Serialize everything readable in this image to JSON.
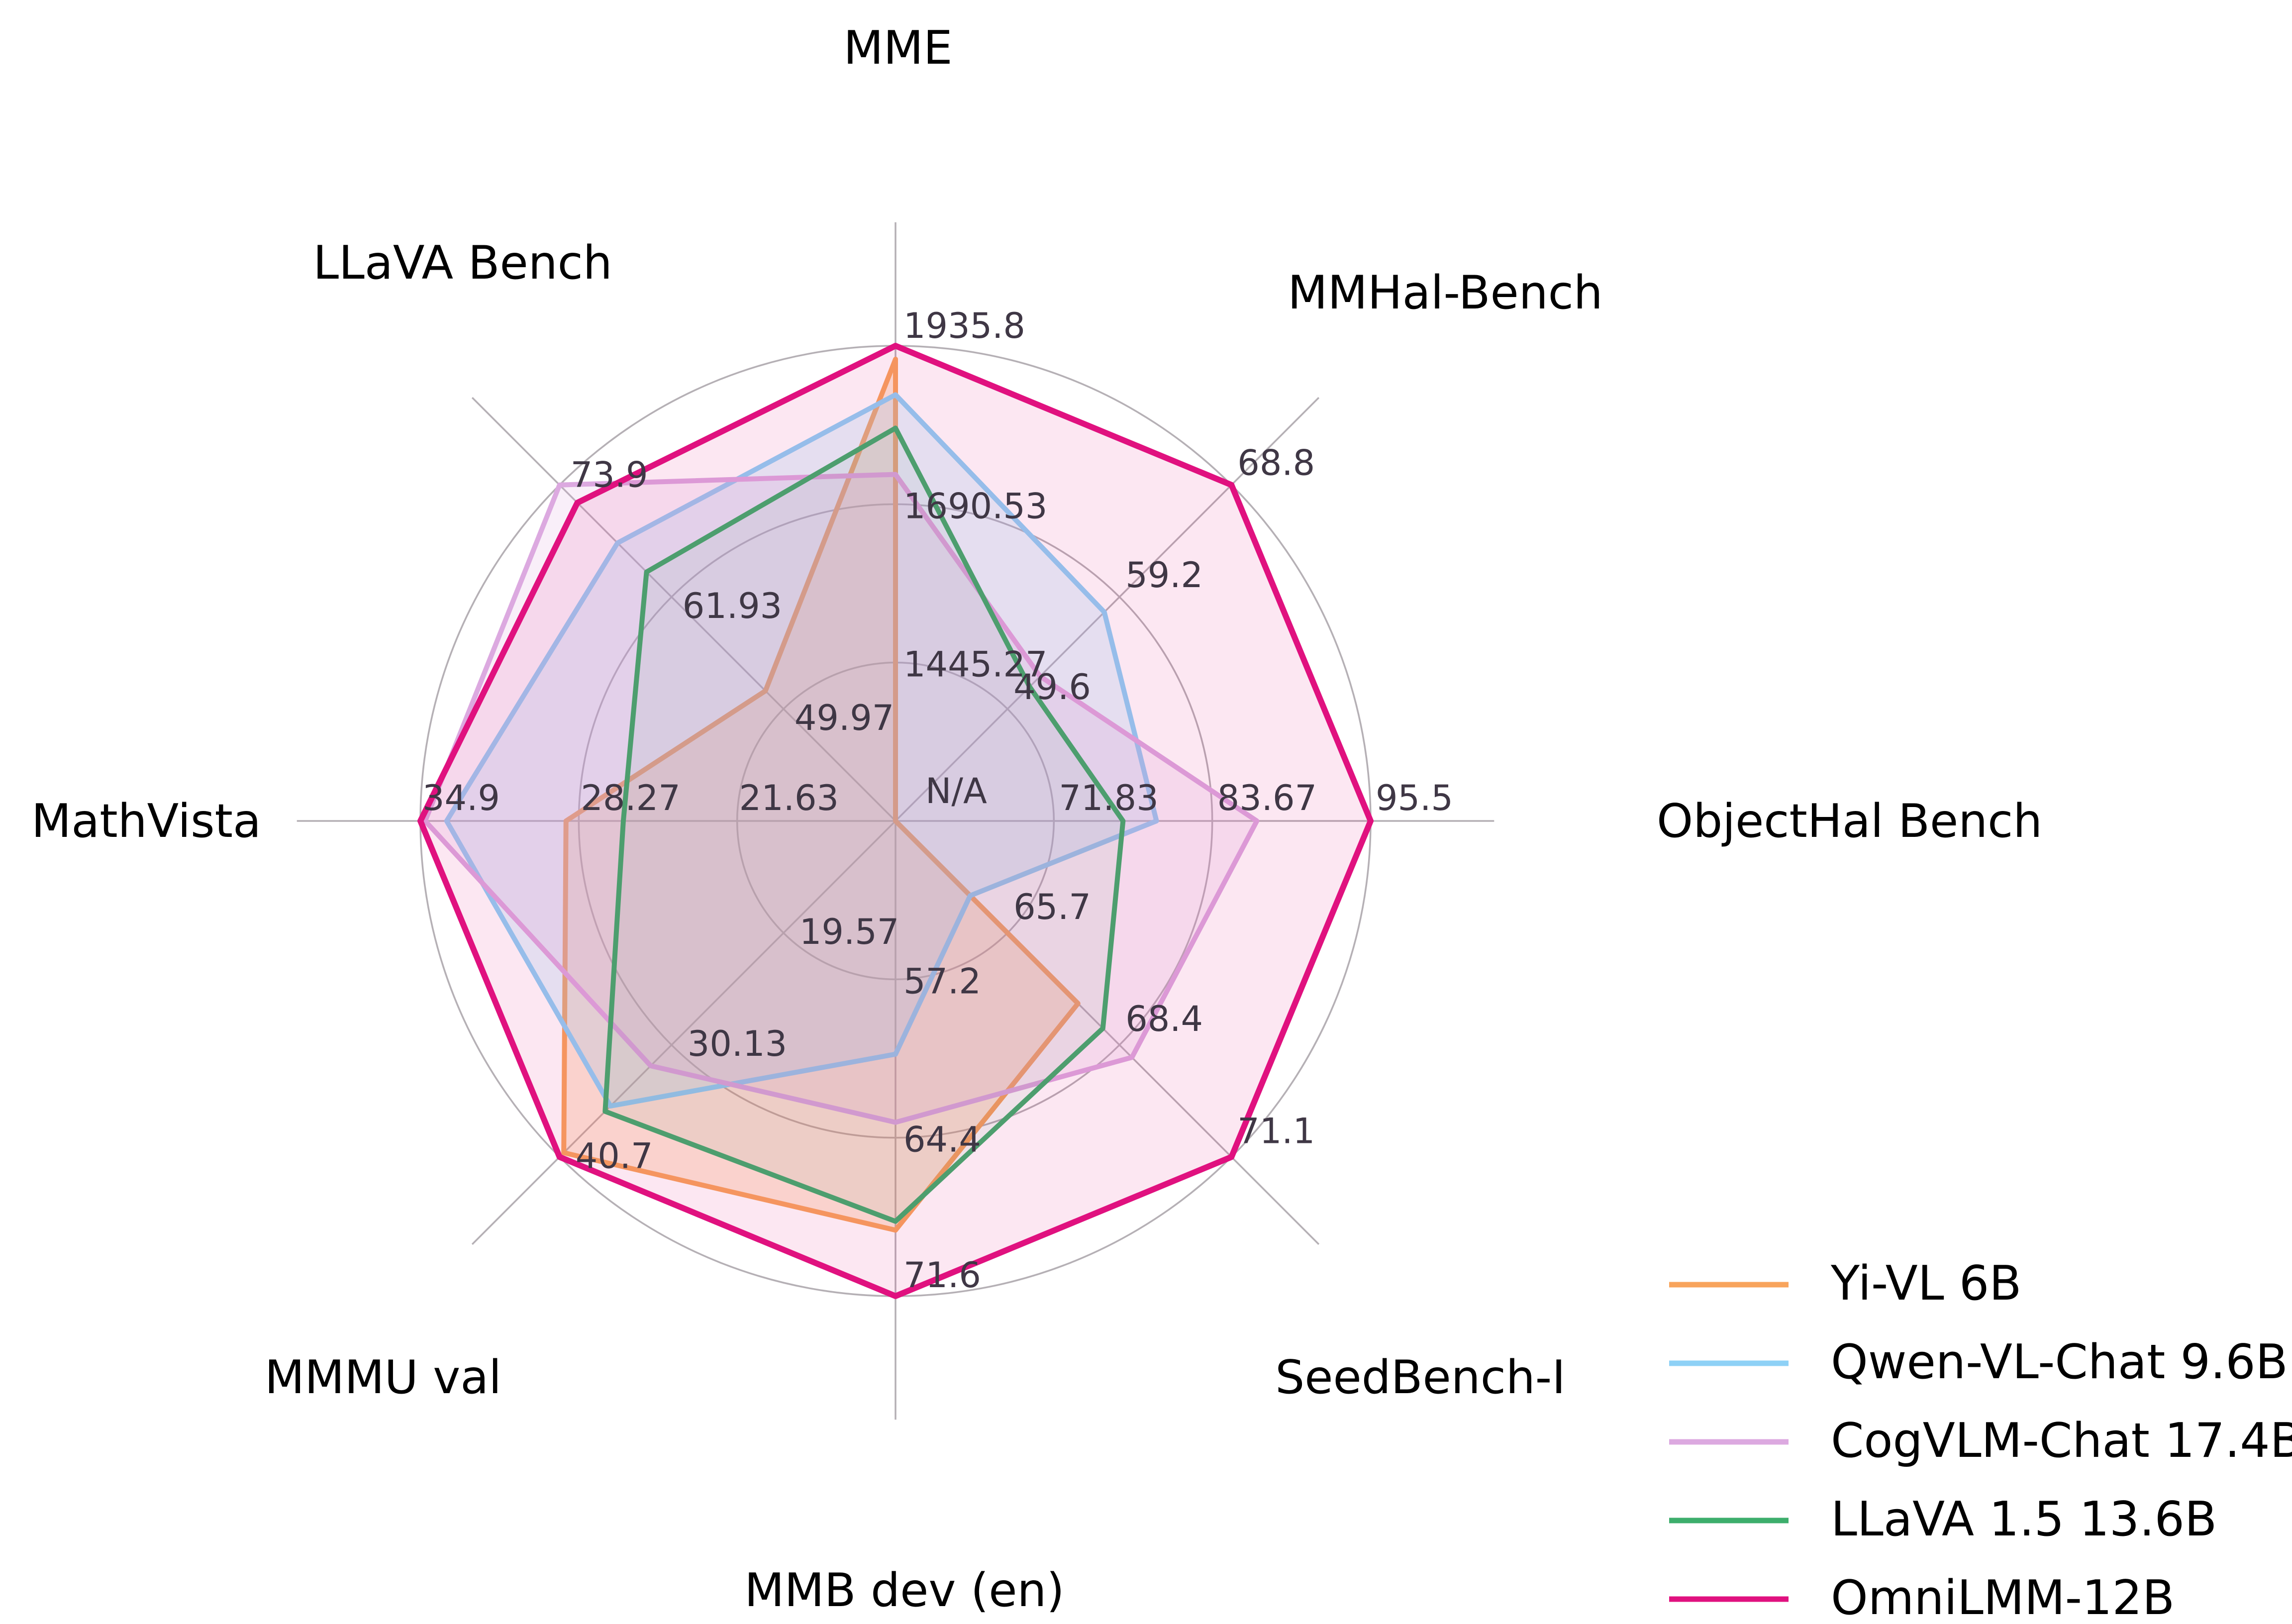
{
  "chart_data": {
    "type": "radar",
    "title": "",
    "center_label": "N/A",
    "grid": {
      "ring_count": 3,
      "ring_color": "#B5B0B5",
      "spoke_color": "#B5B0B5",
      "tick_text_color": "#3F3745",
      "legend_position": "bottom-right"
    },
    "axes": [
      {
        "label": "MME",
        "angle_deg": 0,
        "min": 1200,
        "max": 1935.8,
        "ticks": [
          1445.27,
          1690.53,
          1935.8
        ],
        "tick_labels": [
          "1445.27",
          "1690.53",
          "1935.8"
        ]
      },
      {
        "label": "MMHal-Bench",
        "angle_deg": 45,
        "min": 40,
        "max": 68.8,
        "ticks": [
          49.6,
          59.2,
          68.8
        ],
        "tick_labels": [
          "49.6",
          "59.2",
          "68.8"
        ]
      },
      {
        "label": "ObjectHal Bench",
        "angle_deg": 90,
        "min": 60,
        "max": 95.5,
        "ticks": [
          71.83,
          83.67,
          95.5
        ],
        "tick_labels": [
          "71.83",
          "83.67",
          "95.5"
        ]
      },
      {
        "label": "SeedBench-I",
        "angle_deg": 135,
        "min": 63,
        "max": 71.1,
        "ticks": [
          65.7,
          68.4,
          71.1
        ],
        "tick_labels": [
          "65.7",
          "68.4",
          "71.1"
        ]
      },
      {
        "label": "MMB dev (en)",
        "angle_deg": 180,
        "min": 50,
        "max": 71.6,
        "ticks": [
          57.2,
          64.4,
          71.6
        ],
        "tick_labels": [
          "57.2",
          "64.4",
          "71.6"
        ]
      },
      {
        "label": "MMMU val",
        "angle_deg": 225,
        "min": 9,
        "max": 40.7,
        "ticks": [
          19.57,
          30.13,
          40.7
        ],
        "tick_labels": [
          "19.57",
          "30.13",
          "40.7"
        ]
      },
      {
        "label": "MathVista",
        "angle_deg": 270,
        "min": 15,
        "max": 34.9,
        "ticks": [
          21.63,
          28.27,
          34.9
        ],
        "tick_labels": [
          "21.63",
          "28.27",
          "34.9"
        ]
      },
      {
        "label": "LLaVA Bench",
        "angle_deg": 315,
        "min": 38,
        "max": 73.9,
        "ticks": [
          49.97,
          61.93,
          73.9
        ],
        "tick_labels": [
          "49.97",
          "61.93",
          "73.9"
        ]
      }
    ],
    "series": [
      {
        "name": "Yi-VL 6B",
        "color": "#F8A45C",
        "fill_opacity": 0.25,
        "stroke_width": 10,
        "values": [
          1915.1,
          null,
          null,
          67.4,
          68.6,
          40.3,
          28.8,
          51.9
        ]
      },
      {
        "name": "Qwen-VL-Chat 9.6B",
        "color": "#8ED1F6",
        "fill_opacity": 0.22,
        "stroke_width": 10,
        "values": [
          1860.0,
          57.9,
          79.5,
          64.8,
          60.6,
          35.9,
          33.8,
          67.7
        ]
      },
      {
        "name": "CogVLM-Chat 17.4B",
        "color": "#DCA9E0",
        "fill_opacity": 0.18,
        "stroke_width": 10,
        "values": [
          1736.6,
          52.4,
          87.0,
          68.7,
          63.7,
          32.1,
          34.7,
          73.9
        ]
      },
      {
        "name": "LLaVA 1.5 13.6B",
        "color": "#3DAE6C",
        "fill_opacity": 0.07,
        "stroke_width": 10,
        "values": [
          1808.4,
          51.5,
          77.0,
          68.0,
          68.2,
          36.4,
          26.4,
          64.6
        ]
      },
      {
        "name": "OmniLMM-12B",
        "color": "#E0117F",
        "fill_opacity": 0.1,
        "stroke_width": 12,
        "values": [
          1935.8,
          68.8,
          95.5,
          71.1,
          71.6,
          40.7,
          34.9,
          72.0
        ]
      }
    ],
    "note": "Each spoke has its own scale; rings at 1/3, 2/3, 3/3 of radius. Center labeled N/A."
  },
  "legend": {
    "items": [
      {
        "label": "Yi-VL 6B",
        "color": "#F8A45C"
      },
      {
        "label": "Qwen-VL-Chat 9.6B",
        "color": "#8ED1F6"
      },
      {
        "label": "CogVLM-Chat 17.4B",
        "color": "#DCA9E0"
      },
      {
        "label": "LLaVA 1.5 13.6B",
        "color": "#3DAE6C"
      },
      {
        "label": "OmniLMM-12B",
        "color": "#E0117F"
      }
    ]
  }
}
